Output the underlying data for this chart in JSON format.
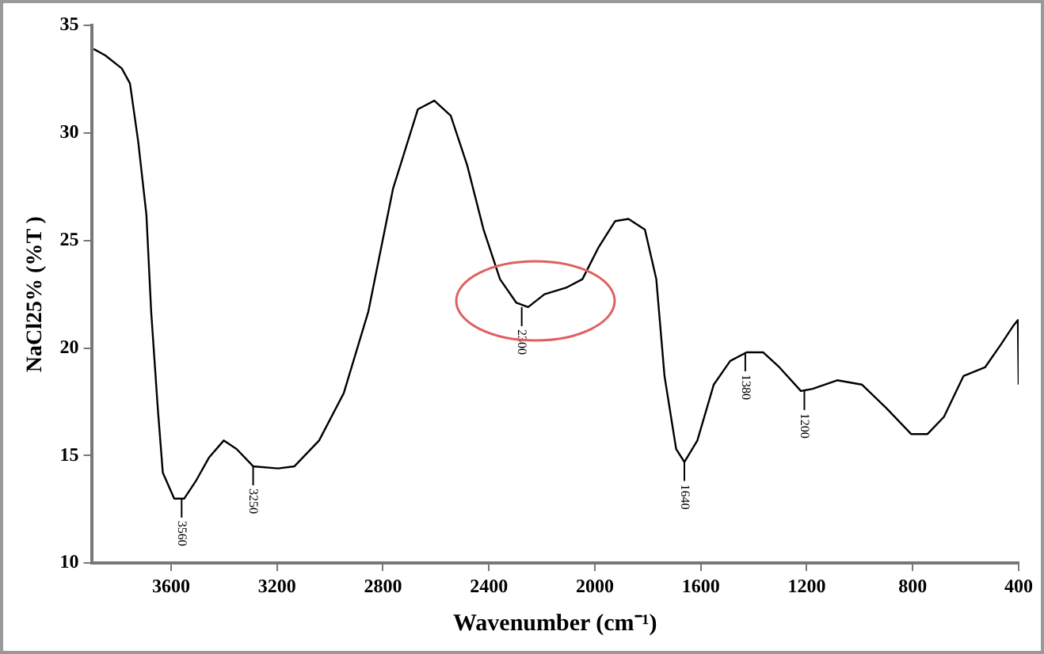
{
  "chart_data": {
    "type": "line",
    "xlabel": "Wavenumber (cm⁻¹)",
    "ylabel": "NaCl25% (%T )",
    "xlim": [
      3900,
      400
    ],
    "xticks": [
      3600,
      3200,
      2800,
      2400,
      2000,
      1600,
      1200,
      800,
      400
    ],
    "ylim": [
      10,
      35
    ],
    "yticks": [
      10,
      15,
      20,
      25,
      30,
      35
    ],
    "grid": false,
    "legend": false,
    "marker": "none",
    "line_style": "solid",
    "series": [
      {
        "color": "#000000",
        "x": [
          3892,
          3848,
          3786,
          3755,
          3724,
          3693,
          3675,
          3650,
          3631,
          3588,
          3550,
          3507,
          3457,
          3401,
          3352,
          3290,
          3196,
          3134,
          3041,
          2948,
          2855,
          2762,
          2668,
          2606,
          2544,
          2482,
          2420,
          2358,
          2296,
          2252,
          2190,
          2109,
          2047,
          1985,
          1923,
          1873,
          1811,
          1768,
          1737,
          1693,
          1662,
          1613,
          1551,
          1489,
          1427,
          1365,
          1303,
          1222,
          1178,
          1085,
          992,
          899,
          806,
          744,
          682,
          608,
          527,
          465,
          422,
          403,
          400
        ],
        "values": [
          33.9,
          33.6,
          33.0,
          32.3,
          29.6,
          26.2,
          21.7,
          17.2,
          14.2,
          13.0,
          13.0,
          13.8,
          14.9,
          15.7,
          15.3,
          14.5,
          14.4,
          14.5,
          15.7,
          17.9,
          21.7,
          27.4,
          31.1,
          31.5,
          30.8,
          28.5,
          25.5,
          23.2,
          22.1,
          21.9,
          22.5,
          22.8,
          23.2,
          24.7,
          25.9,
          26.0,
          25.5,
          23.2,
          18.7,
          15.3,
          14.7,
          15.7,
          18.3,
          19.4,
          19.8,
          19.8,
          19.1,
          18.0,
          18.1,
          18.5,
          18.3,
          17.2,
          16.0,
          16.0,
          16.8,
          18.7,
          19.1,
          20.2,
          21.0,
          21.3,
          18.3
        ]
      }
    ],
    "annotations": [
      {
        "text": "3560",
        "x": 3560,
        "y": 13.0
      },
      {
        "text": "3250",
        "x": 3290,
        "y": 14.5
      },
      {
        "text": "2300",
        "x": 2276,
        "y": 21.9
      },
      {
        "text": "1640",
        "x": 1662,
        "y": 14.7
      },
      {
        "text": "1380",
        "x": 1432,
        "y": 19.8
      },
      {
        "text": "1200",
        "x": 1209,
        "y": 18.0
      }
    ]
  }
}
